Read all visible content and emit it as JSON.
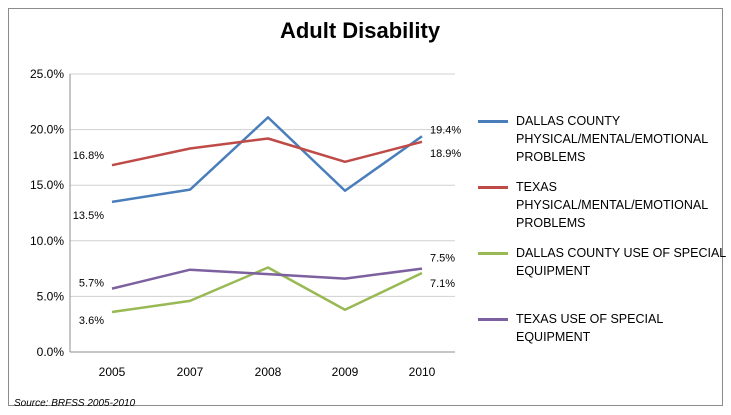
{
  "chart_data": {
    "type": "line",
    "title": "Adult Disability",
    "categories": [
      "2005",
      "2007",
      "2008",
      "2009",
      "2010"
    ],
    "ylim": [
      0,
      25
    ],
    "yticks": [
      "0.0%",
      "5.0%",
      "10.0%",
      "15.0%",
      "20.0%",
      "25.0%"
    ],
    "ytick_values": [
      0,
      5,
      10,
      15,
      20,
      25
    ],
    "grid": true,
    "legend_position": "right",
    "series": [
      {
        "name": "DALLAS COUNTY PHYSICAL/MENTAL/EMOTIONAL PROBLEMS",
        "color": "#4a7ebb",
        "values": [
          13.5,
          14.6,
          21.1,
          14.5,
          19.4
        ],
        "labels": [
          {
            "index": 0,
            "text": "13.5%"
          },
          {
            "index": 4,
            "text": "19.4%"
          }
        ]
      },
      {
        "name": "TEXAS PHYSICAL/MENTAL/EMOTIONAL PROBLEMS",
        "color": "#be4b48",
        "values": [
          16.8,
          18.3,
          19.2,
          17.1,
          18.9
        ],
        "labels": [
          {
            "index": 0,
            "text": "16.8%"
          },
          {
            "index": 4,
            "text": "18.9%"
          }
        ]
      },
      {
        "name": "DALLAS COUNTY USE OF SPECIAL EQUIPMENT",
        "color": "#98b954",
        "values": [
          3.6,
          4.6,
          7.6,
          3.8,
          7.1
        ],
        "labels": [
          {
            "index": 0,
            "text": "3.6%"
          },
          {
            "index": 4,
            "text": "7.1%"
          }
        ]
      },
      {
        "name": "TEXAS USE OF SPECIAL EQUIPMENT",
        "color": "#7d60a0",
        "values": [
          5.7,
          7.4,
          7.0,
          6.6,
          7.5
        ],
        "labels": [
          {
            "index": 0,
            "text": "5.7%"
          },
          {
            "index": 4,
            "text": "7.5%"
          }
        ]
      }
    ]
  },
  "source": "Source: BRFSS 2005-2010"
}
